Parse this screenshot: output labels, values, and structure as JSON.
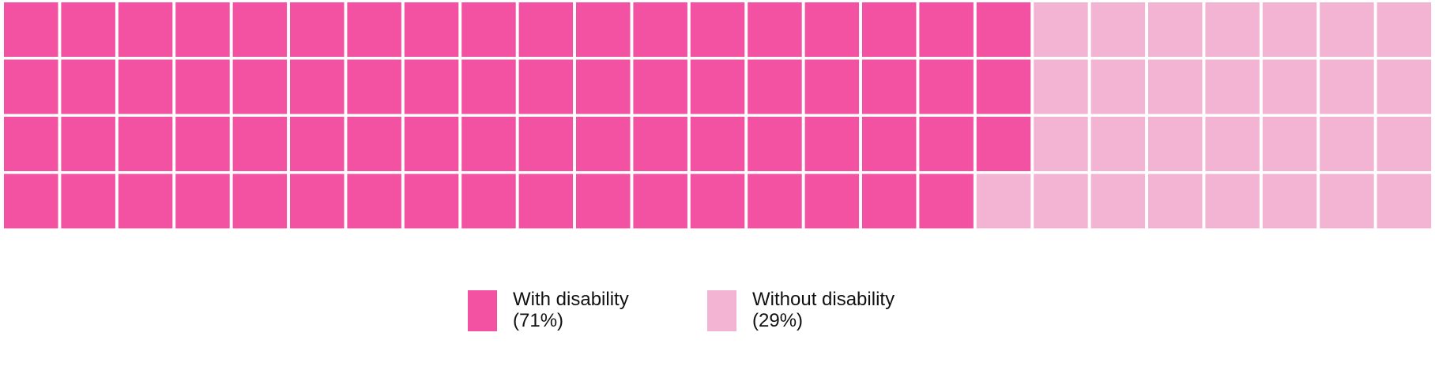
{
  "chart_data": {
    "type": "waffle",
    "grid": {
      "columns": 25,
      "rows": 4
    },
    "categories": [
      "With disability",
      "Without disability"
    ],
    "values": [
      71,
      29
    ],
    "percent_labels": [
      "(71%)",
      "(29%)"
    ],
    "colors": [
      "#f351a2",
      "#f2b4d2"
    ],
    "legend_placement": "bottom-center"
  }
}
